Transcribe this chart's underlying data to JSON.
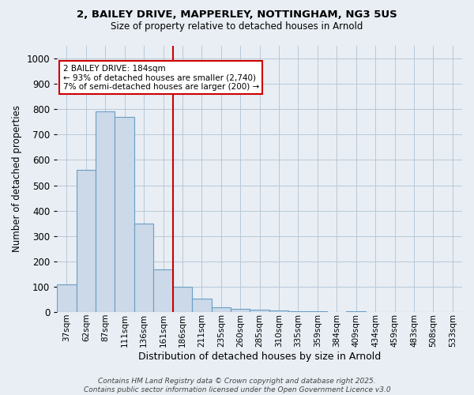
{
  "title_line1": "2, BAILEY DRIVE, MAPPERLEY, NOTTINGHAM, NG3 5US",
  "title_line2": "Size of property relative to detached houses in Arnold",
  "xlabel": "Distribution of detached houses by size in Arnold",
  "ylabel": "Number of detached properties",
  "bar_color": "#ccd9e8",
  "bar_edge_color": "#6a9ec5",
  "bin_labels": [
    "37sqm",
    "62sqm",
    "87sqm",
    "111sqm",
    "136sqm",
    "161sqm",
    "186sqm",
    "211sqm",
    "235sqm",
    "260sqm",
    "285sqm",
    "310sqm",
    "335sqm",
    "359sqm",
    "384sqm",
    "409sqm",
    "434sqm",
    "459sqm",
    "483sqm",
    "508sqm",
    "533sqm"
  ],
  "bar_values": [
    110,
    560,
    790,
    770,
    350,
    170,
    100,
    55,
    20,
    15,
    10,
    8,
    5,
    3,
    2,
    5,
    2,
    1,
    2,
    1,
    0
  ],
  "red_line_x": 6,
  "ylim": [
    0,
    1050
  ],
  "yticks": [
    0,
    100,
    200,
    300,
    400,
    500,
    600,
    700,
    800,
    900,
    1000
  ],
  "annotation_text": "2 BAILEY DRIVE: 184sqm\n← 93% of detached houses are smaller (2,740)\n7% of semi-detached houses are larger (200) →",
  "annotation_box_facecolor": "#ffffff",
  "annotation_box_edgecolor": "#cc0000",
  "red_line_color": "#cc0000",
  "footer_text": "Contains HM Land Registry data © Crown copyright and database right 2025.\nContains public sector information licensed under the Open Government Licence v3.0",
  "background_color": "#e8eef4",
  "grid_color": "#b8c8d8"
}
